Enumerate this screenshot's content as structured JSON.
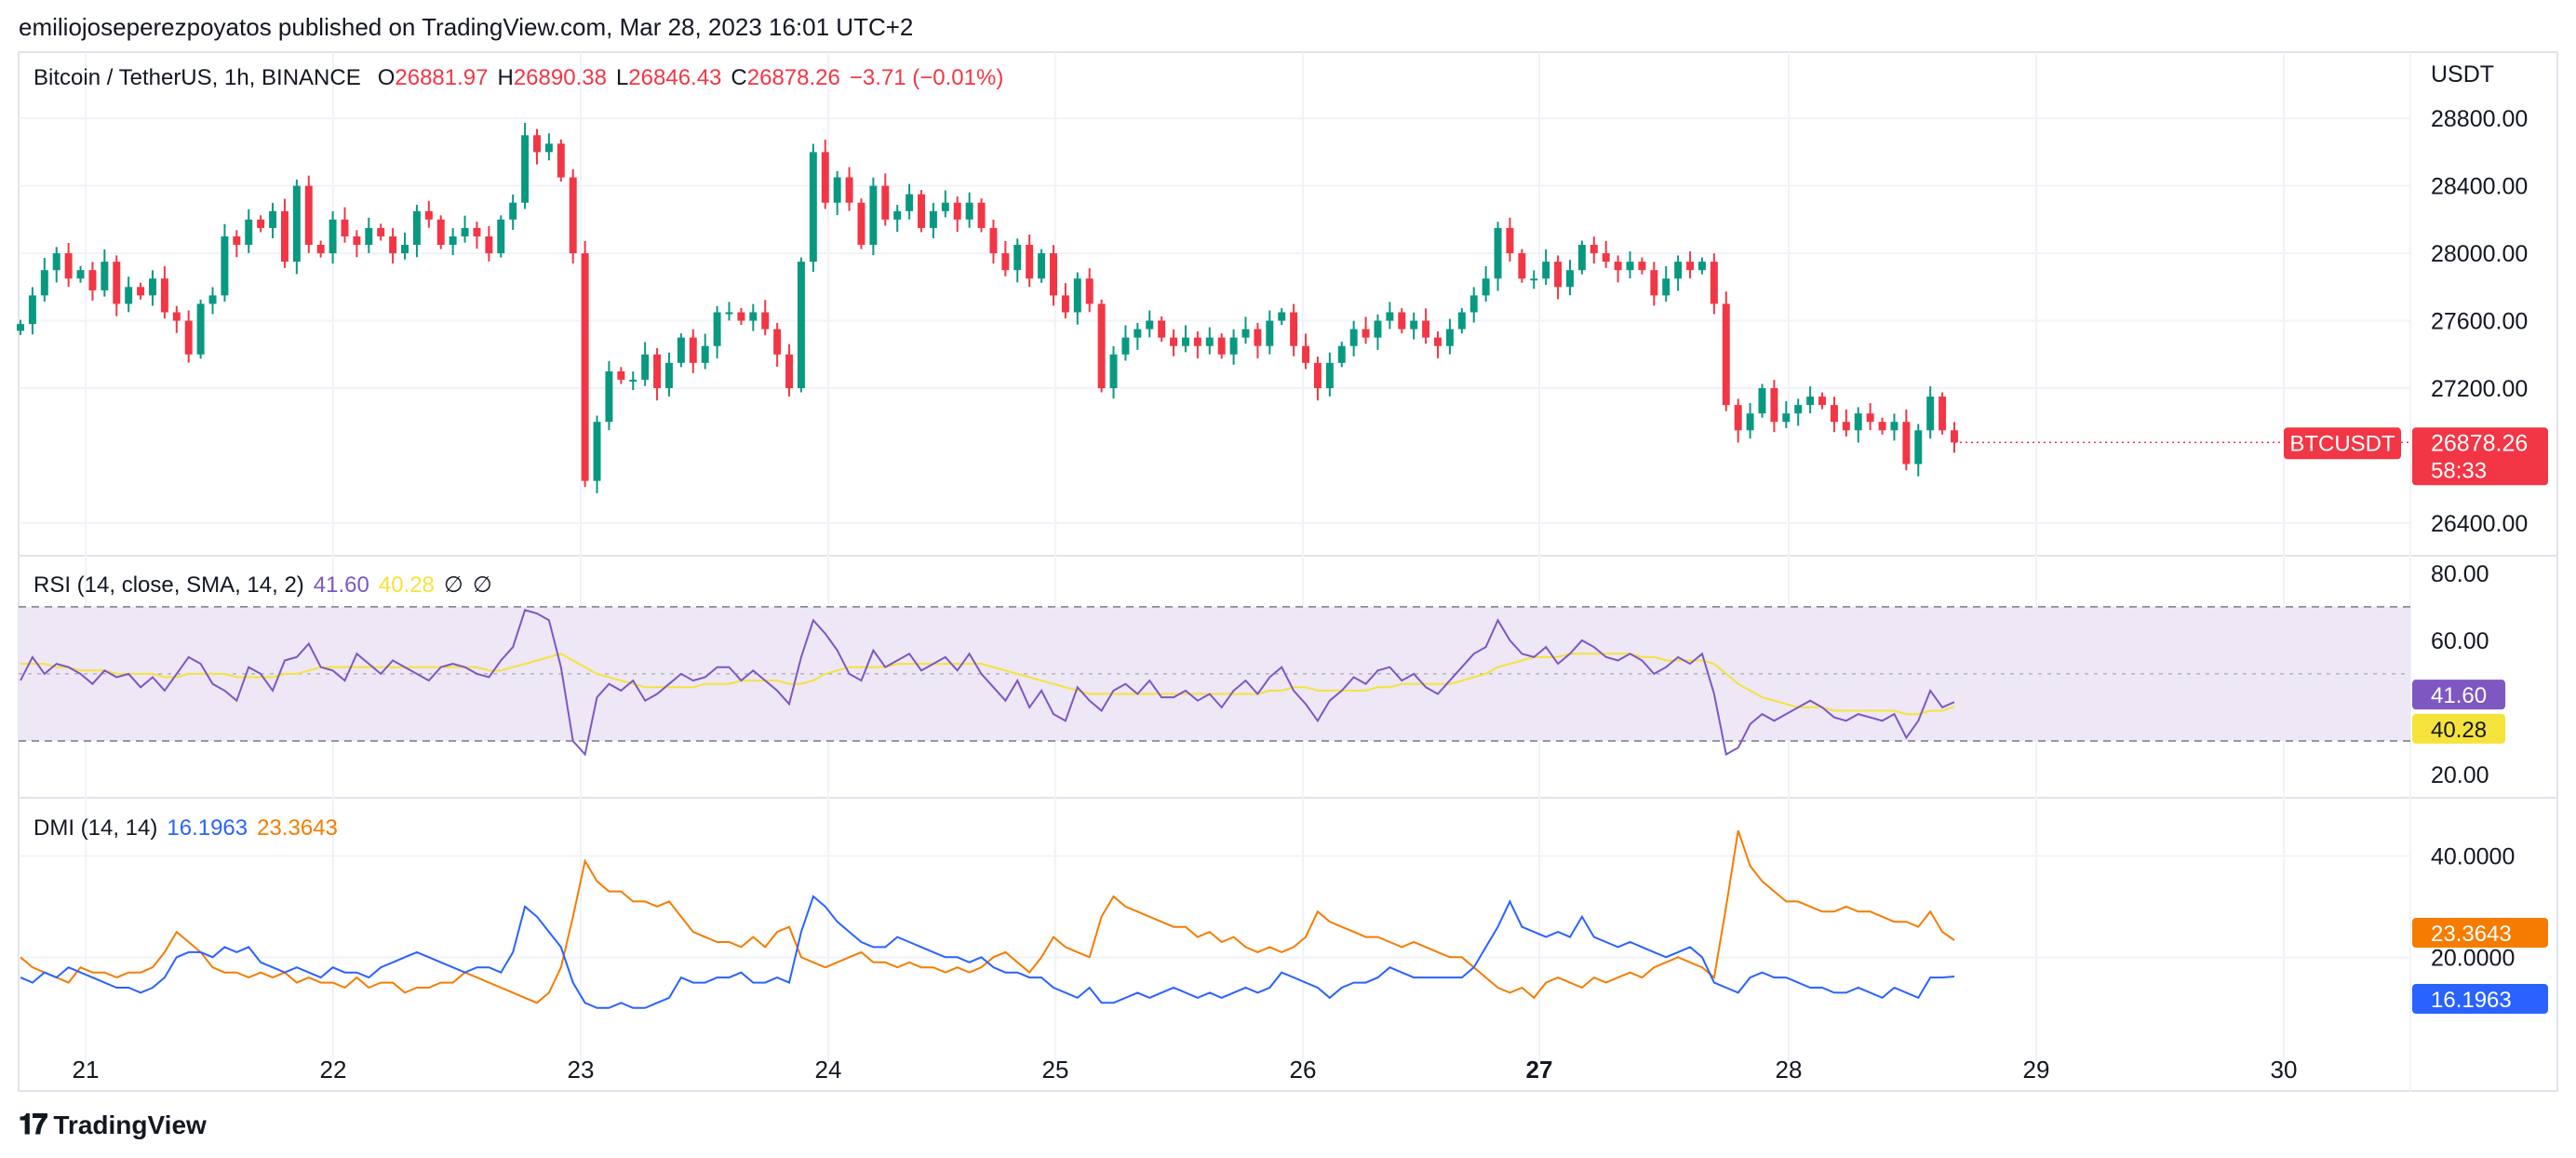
{
  "header": {
    "published": "emiliojoseperezpoyatos published on TradingView.com, Mar 28, 2023 16:01 UTC+2"
  },
  "main_legend": {
    "symbol": "Bitcoin / TetherUS, 1h, BINANCE",
    "open_label": "O",
    "open": "26881.97",
    "high_label": "H",
    "high": "26890.38",
    "low_label": "L",
    "low": "26846.43",
    "close_label": "C",
    "close": "26878.26",
    "change": "−3.71 (−0.01%)"
  },
  "rsi_legend": {
    "label": "RSI (14, close, SMA, 14, 2)",
    "rsi": "41.60",
    "sma": "40.28",
    "extra1": "∅",
    "extra2": "∅"
  },
  "dmi_legend": {
    "label": "DMI (14, 14)",
    "plus": "16.1963",
    "minus": "23.3643"
  },
  "footer": {
    "brand": "TradingView",
    "logo_icon": "tradingview-logo-icon"
  },
  "colors": {
    "up": "#089981",
    "down": "#f23645",
    "rsi": "#7e57c2",
    "rsi_sma": "#f5e33b",
    "dmi_plus": "#2962ff",
    "dmi_minus": "#f57c00",
    "rsi_band": "#ede7f6"
  },
  "chart_data": [
    {
      "type": "candlestick",
      "ylabel": "USDT",
      "ylim": [
        26300,
        28950
      ],
      "y_ticks": [
        "28800.00",
        "28400.00",
        "28000.00",
        "27600.00",
        "27200.00",
        "26400.00"
      ],
      "y_tick_values": [
        28800,
        28400,
        28000,
        27600,
        27200,
        26400
      ],
      "x_ticks": [
        "21",
        "22",
        "23",
        "24",
        "25",
        "26",
        "27",
        "28",
        "29",
        "30"
      ],
      "last_price_label": "26878.26",
      "countdown": "58:33",
      "symbol_badge": "BTCUSDT",
      "close_path": [
        27580,
        27750,
        27900,
        28000,
        27850,
        27900,
        27780,
        27950,
        27700,
        27800,
        27750,
        27850,
        27650,
        27600,
        27400,
        27700,
        27750,
        28100,
        28050,
        28200,
        28150,
        28250,
        27950,
        28400,
        28050,
        28000,
        28200,
        28100,
        28050,
        28150,
        28100,
        28000,
        28050,
        28250,
        28200,
        28050,
        28100,
        28150,
        28100,
        28000,
        28200,
        28300,
        28700,
        28600,
        28650,
        28450,
        28000,
        26650,
        27000,
        27300,
        27250,
        27250,
        27400,
        27200,
        27350,
        27500,
        27350,
        27450,
        27650,
        27650,
        27600,
        27650,
        27550,
        27400,
        27200,
        27950,
        28600,
        28300,
        28450,
        28300,
        28050,
        28400,
        28200,
        28250,
        28350,
        28150,
        28250,
        28300,
        28200,
        28300,
        28150,
        28000,
        27900,
        28050,
        27850,
        28000,
        27750,
        27650,
        27850,
        27700,
        27200,
        27400,
        27500,
        27550,
        27600,
        27500,
        27450,
        27500,
        27450,
        27500,
        27400,
        27500,
        27550,
        27450,
        27600,
        27650,
        27450,
        27350,
        27200,
        27350,
        27450,
        27550,
        27500,
        27600,
        27650,
        27550,
        27600,
        27500,
        27450,
        27550,
        27650,
        27750,
        27850,
        28150,
        28000,
        27850,
        27850,
        27950,
        27800,
        27900,
        28050,
        28000,
        27950,
        27900,
        27950,
        27900,
        27750,
        27850,
        27950,
        27900,
        27950,
        27700,
        27100,
        26950,
        27050,
        27200,
        27000,
        27050,
        27100,
        27150,
        27100,
        27000,
        26950,
        27050,
        27000,
        26950,
        27000,
        26750,
        26950,
        27150,
        26950,
        26878
      ]
    },
    {
      "type": "line",
      "name": "RSI",
      "ylim": [
        15,
        83
      ],
      "y_ticks": [
        "80.00",
        "60.00",
        "20.00"
      ],
      "y_tick_values": [
        80,
        60,
        20
      ],
      "bands": [
        30,
        50,
        70
      ],
      "last_rsi": "41.60",
      "last_sma": "40.28",
      "rsi_values": [
        48,
        55,
        50,
        53,
        52,
        50,
        47,
        51,
        49,
        50,
        46,
        49,
        45,
        50,
        55,
        53,
        47,
        45,
        42,
        52,
        50,
        45,
        54,
        55,
        59,
        52,
        51,
        48,
        56,
        53,
        50,
        54,
        52,
        50,
        48,
        52,
        53,
        52,
        50,
        49,
        54,
        58,
        69,
        68,
        66,
        52,
        30,
        26,
        43,
        47,
        45,
        48,
        42,
        44,
        47,
        50,
        48,
        49,
        52,
        52,
        48,
        51,
        48,
        45,
        41,
        55,
        66,
        62,
        57,
        50,
        48,
        57,
        52,
        54,
        56,
        51,
        53,
        55,
        51,
        56,
        50,
        46,
        42,
        48,
        40,
        45,
        38,
        36,
        46,
        42,
        39,
        45,
        47,
        44,
        48,
        43,
        43,
        45,
        42,
        44,
        40,
        45,
        48,
        44,
        49,
        52,
        45,
        41,
        36,
        42,
        45,
        49,
        47,
        51,
        52,
        48,
        50,
        46,
        44,
        48,
        52,
        56,
        58,
        66,
        60,
        56,
        55,
        58,
        53,
        56,
        60,
        58,
        55,
        54,
        56,
        54,
        50,
        52,
        55,
        53,
        56,
        44,
        26,
        28,
        35,
        38,
        36,
        38,
        40,
        42,
        40,
        37,
        36,
        38,
        37,
        36,
        38,
        31,
        36,
        45,
        40,
        41.6
      ],
      "sma_values": [
        53,
        53,
        53,
        52,
        52,
        51,
        51,
        51,
        50,
        50,
        50,
        50,
        49,
        49,
        50,
        50,
        50,
        50,
        49,
        49,
        49,
        49,
        50,
        50,
        51,
        52,
        52,
        52,
        52,
        52,
        52,
        52,
        52,
        52,
        52,
        52,
        52,
        52,
        52,
        51,
        51,
        52,
        53,
        54,
        55,
        56,
        54,
        52,
        50,
        49,
        48,
        47,
        46,
        46,
        46,
        46,
        46,
        47,
        47,
        47,
        48,
        48,
        48,
        48,
        47,
        47,
        48,
        50,
        51,
        52,
        52,
        52,
        52,
        53,
        53,
        53,
        53,
        53,
        53,
        53,
        53,
        52,
        51,
        50,
        49,
        48,
        47,
        46,
        45,
        44,
        44,
        44,
        44,
        44,
        44,
        44,
        44,
        44,
        44,
        44,
        44,
        44,
        44,
        44,
        45,
        45,
        46,
        46,
        45,
        45,
        45,
        45,
        45,
        46,
        46,
        47,
        47,
        47,
        47,
        47,
        48,
        49,
        50,
        52,
        53,
        54,
        55,
        55,
        55,
        56,
        56,
        56,
        56,
        56,
        56,
        55,
        55,
        54,
        54,
        54,
        54,
        53,
        50,
        47,
        45,
        43,
        42,
        41,
        40,
        40,
        40,
        39,
        39,
        39,
        39,
        39,
        39,
        38,
        38,
        39,
        39,
        40.28
      ]
    },
    {
      "type": "line",
      "name": "DMI",
      "ylim": [
        5,
        50
      ],
      "y_ticks": [
        "40.0000",
        "20.0000"
      ],
      "y_tick_values": [
        40,
        20
      ],
      "last_plus": "16.1963",
      "last_minus": "23.3643",
      "plus_values": [
        16,
        15,
        17,
        16,
        18,
        17,
        16,
        15,
        14,
        14,
        13,
        14,
        16,
        20,
        21,
        21,
        20,
        22,
        21,
        22,
        19,
        18,
        17,
        18,
        17,
        16,
        18,
        17,
        17,
        16,
        18,
        19,
        20,
        21,
        20,
        19,
        18,
        17,
        18,
        18,
        17,
        21,
        30,
        28,
        25,
        22,
        15,
        11,
        10,
        10,
        11,
        10,
        10,
        11,
        12,
        16,
        15,
        15,
        16,
        16,
        17,
        15,
        15,
        16,
        15,
        25,
        32,
        30,
        27,
        25,
        23,
        22,
        22,
        24,
        23,
        22,
        21,
        20,
        20,
        19,
        20,
        18,
        17,
        17,
        16,
        16,
        14,
        13,
        12,
        14,
        11,
        11,
        12,
        13,
        12,
        13,
        14,
        13,
        12,
        13,
        12,
        13,
        14,
        13,
        14,
        17,
        16,
        15,
        14,
        12,
        14,
        15,
        15,
        16,
        18,
        17,
        16,
        16,
        16,
        16,
        16,
        18,
        22,
        26,
        31,
        26,
        25,
        24,
        25,
        24,
        28,
        24,
        23,
        22,
        23,
        22,
        21,
        20,
        21,
        22,
        20,
        15,
        14,
        13,
        16,
        17,
        16,
        16,
        15,
        14,
        14,
        13,
        13,
        14,
        13,
        12,
        14,
        13,
        12,
        16,
        16,
        16.1963
      ],
      "minus_values": [
        20,
        18,
        17,
        16,
        15,
        18,
        17,
        17,
        16,
        17,
        17,
        18,
        21,
        25,
        23,
        21,
        18,
        17,
        17,
        16,
        17,
        16,
        17,
        15,
        16,
        15,
        15,
        14,
        16,
        14,
        15,
        15,
        13,
        14,
        14,
        15,
        15,
        17,
        16,
        15,
        14,
        13,
        12,
        11,
        13,
        18,
        28,
        39,
        35,
        33,
        33,
        31,
        31,
        30,
        31,
        28,
        25,
        24,
        23,
        23,
        22,
        24,
        22,
        25,
        26,
        20,
        19,
        18,
        19,
        20,
        21,
        19,
        19,
        18,
        19,
        18,
        18,
        17,
        18,
        17,
        18,
        20,
        21,
        19,
        17,
        20,
        24,
        22,
        21,
        20,
        28,
        32,
        30,
        29,
        28,
        27,
        26,
        26,
        24,
        25,
        23,
        24,
        22,
        21,
        22,
        21,
        22,
        24,
        29,
        27,
        26,
        25,
        24,
        24,
        23,
        22,
        23,
        22,
        21,
        20,
        20,
        18,
        16,
        14,
        13,
        14,
        12,
        15,
        16,
        15,
        14,
        16,
        15,
        16,
        17,
        16,
        18,
        19,
        20,
        19,
        18,
        16,
        30,
        45,
        38,
        35,
        33,
        31,
        31,
        30,
        29,
        29,
        30,
        29,
        29,
        28,
        27,
        27,
        26,
        29,
        25,
        23.3643
      ]
    }
  ]
}
